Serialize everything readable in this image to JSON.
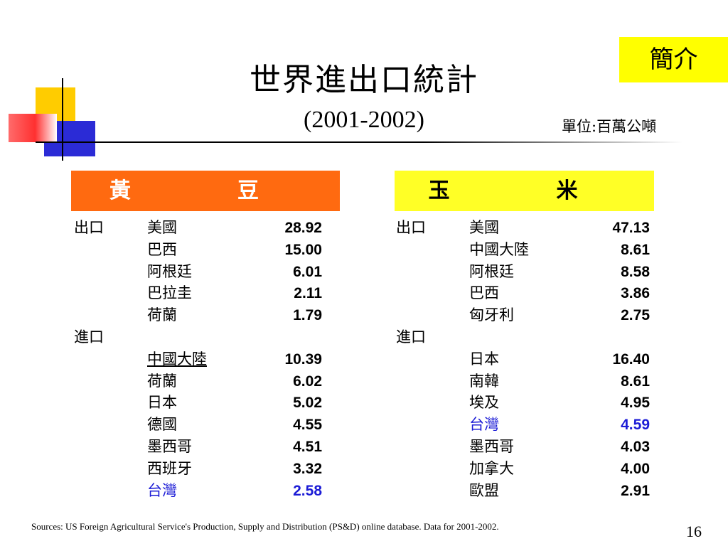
{
  "header": {
    "title": "世界進出口統計",
    "subtitle": "(2001-2002)",
    "unit": "單位:百萬公噸",
    "intro_button": "簡介"
  },
  "soybean": {
    "label": "黃　豆",
    "export_label": "出口",
    "import_label": "進口",
    "exports": [
      {
        "country": "美國",
        "value": "28.92"
      },
      {
        "country": "巴西",
        "value": "15.00"
      },
      {
        "country": "阿根廷",
        "value": "6.01"
      },
      {
        "country": "巴拉圭",
        "value": "2.11"
      },
      {
        "country": "荷蘭",
        "value": "1.79"
      }
    ],
    "imports": [
      {
        "country": "中國大陸",
        "value": "10.39"
      },
      {
        "country": "荷蘭",
        "value": "6.02"
      },
      {
        "country": "日本",
        "value": "5.02"
      },
      {
        "country": "德國",
        "value": "4.55"
      },
      {
        "country": "墨西哥",
        "value": "4.51"
      },
      {
        "country": "西班牙",
        "value": "3.32"
      },
      {
        "country": "台灣",
        "value": "2.58"
      }
    ]
  },
  "corn": {
    "label": "玉　米",
    "export_label": "出口",
    "import_label": "進口",
    "exports": [
      {
        "country": "美國",
        "value": "47.13"
      },
      {
        "country": "中國大陸",
        "value": "8.61"
      },
      {
        "country": "阿根廷",
        "value": "8.58"
      },
      {
        "country": "巴西",
        "value": "3.86"
      },
      {
        "country": "匈牙利",
        "value": "2.75"
      }
    ],
    "imports": [
      {
        "country": "日本",
        "value": "16.40"
      },
      {
        "country": "南韓",
        "value": "8.61"
      },
      {
        "country": "埃及",
        "value": "4.95"
      },
      {
        "country": "台灣",
        "value": "4.59"
      },
      {
        "country": "墨西哥",
        "value": "4.03"
      },
      {
        "country": "加拿大",
        "value": "4.00"
      },
      {
        "country": "歐盟",
        "value": "2.91"
      }
    ]
  },
  "colors": {
    "soybean_header": "#ff6a10",
    "corn_header": "#ffff26",
    "highlight": "#1c1cd6"
  },
  "footer": {
    "source": "Sources: US Foreign Agricultural Service's Production, Supply and Distribution (PS&D) online database. Data for 2001-2002.",
    "page_number": "16"
  }
}
